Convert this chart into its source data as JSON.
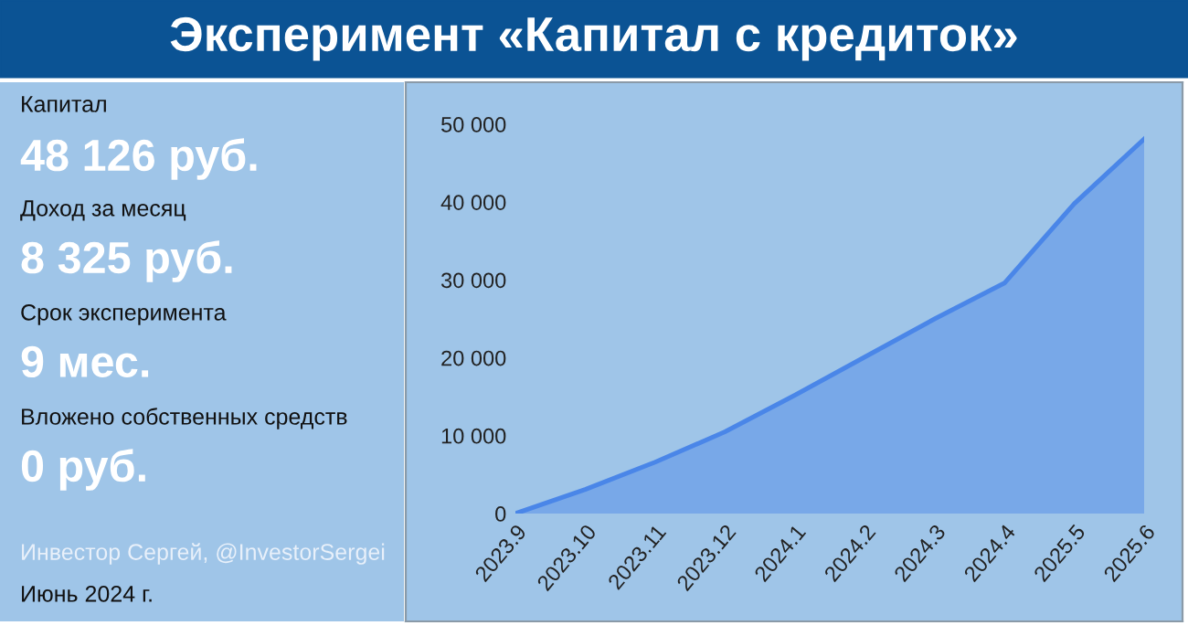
{
  "chart_data": [
    {
      "type": "other",
      "title": "Эксперимент «Капитал с кредиток»",
      "annotations": [
        "Капитал",
        "48 126 руб.",
        "Доход за месяц",
        "8 325 руб.",
        "Срок эксперимента",
        "9 мес.",
        "Вложено собственных средств",
        "0 руб.",
        "Инвестор Сергей, @InvestorSergei",
        "Июнь 2024 г."
      ]
    },
    {
      "type": "area",
      "categories": [
        "2023.9",
        "2023.10",
        "2023.11",
        "2023.12",
        "2024.1",
        "2024.2",
        "2024.3",
        "2024.4",
        "2025.5",
        "2025.6"
      ],
      "series": [
        {
          "color": "#4a86e8",
          "values": [
            0,
            3100,
            6600,
            10500,
            15200,
            20100,
            25000,
            29600,
            39800,
            48100
          ]
        }
      ],
      "ylim": [
        0,
        50000
      ],
      "yticks": [
        {
          "value": 0,
          "label": "0"
        },
        {
          "value": 10000,
          "label": "10 000"
        },
        {
          "value": 20000,
          "label": "20 000"
        },
        {
          "value": 30000,
          "label": "30 000"
        },
        {
          "value": 40000,
          "label": "40 000"
        },
        {
          "value": 50000,
          "label": "50 000"
        }
      ]
    }
  ]
}
